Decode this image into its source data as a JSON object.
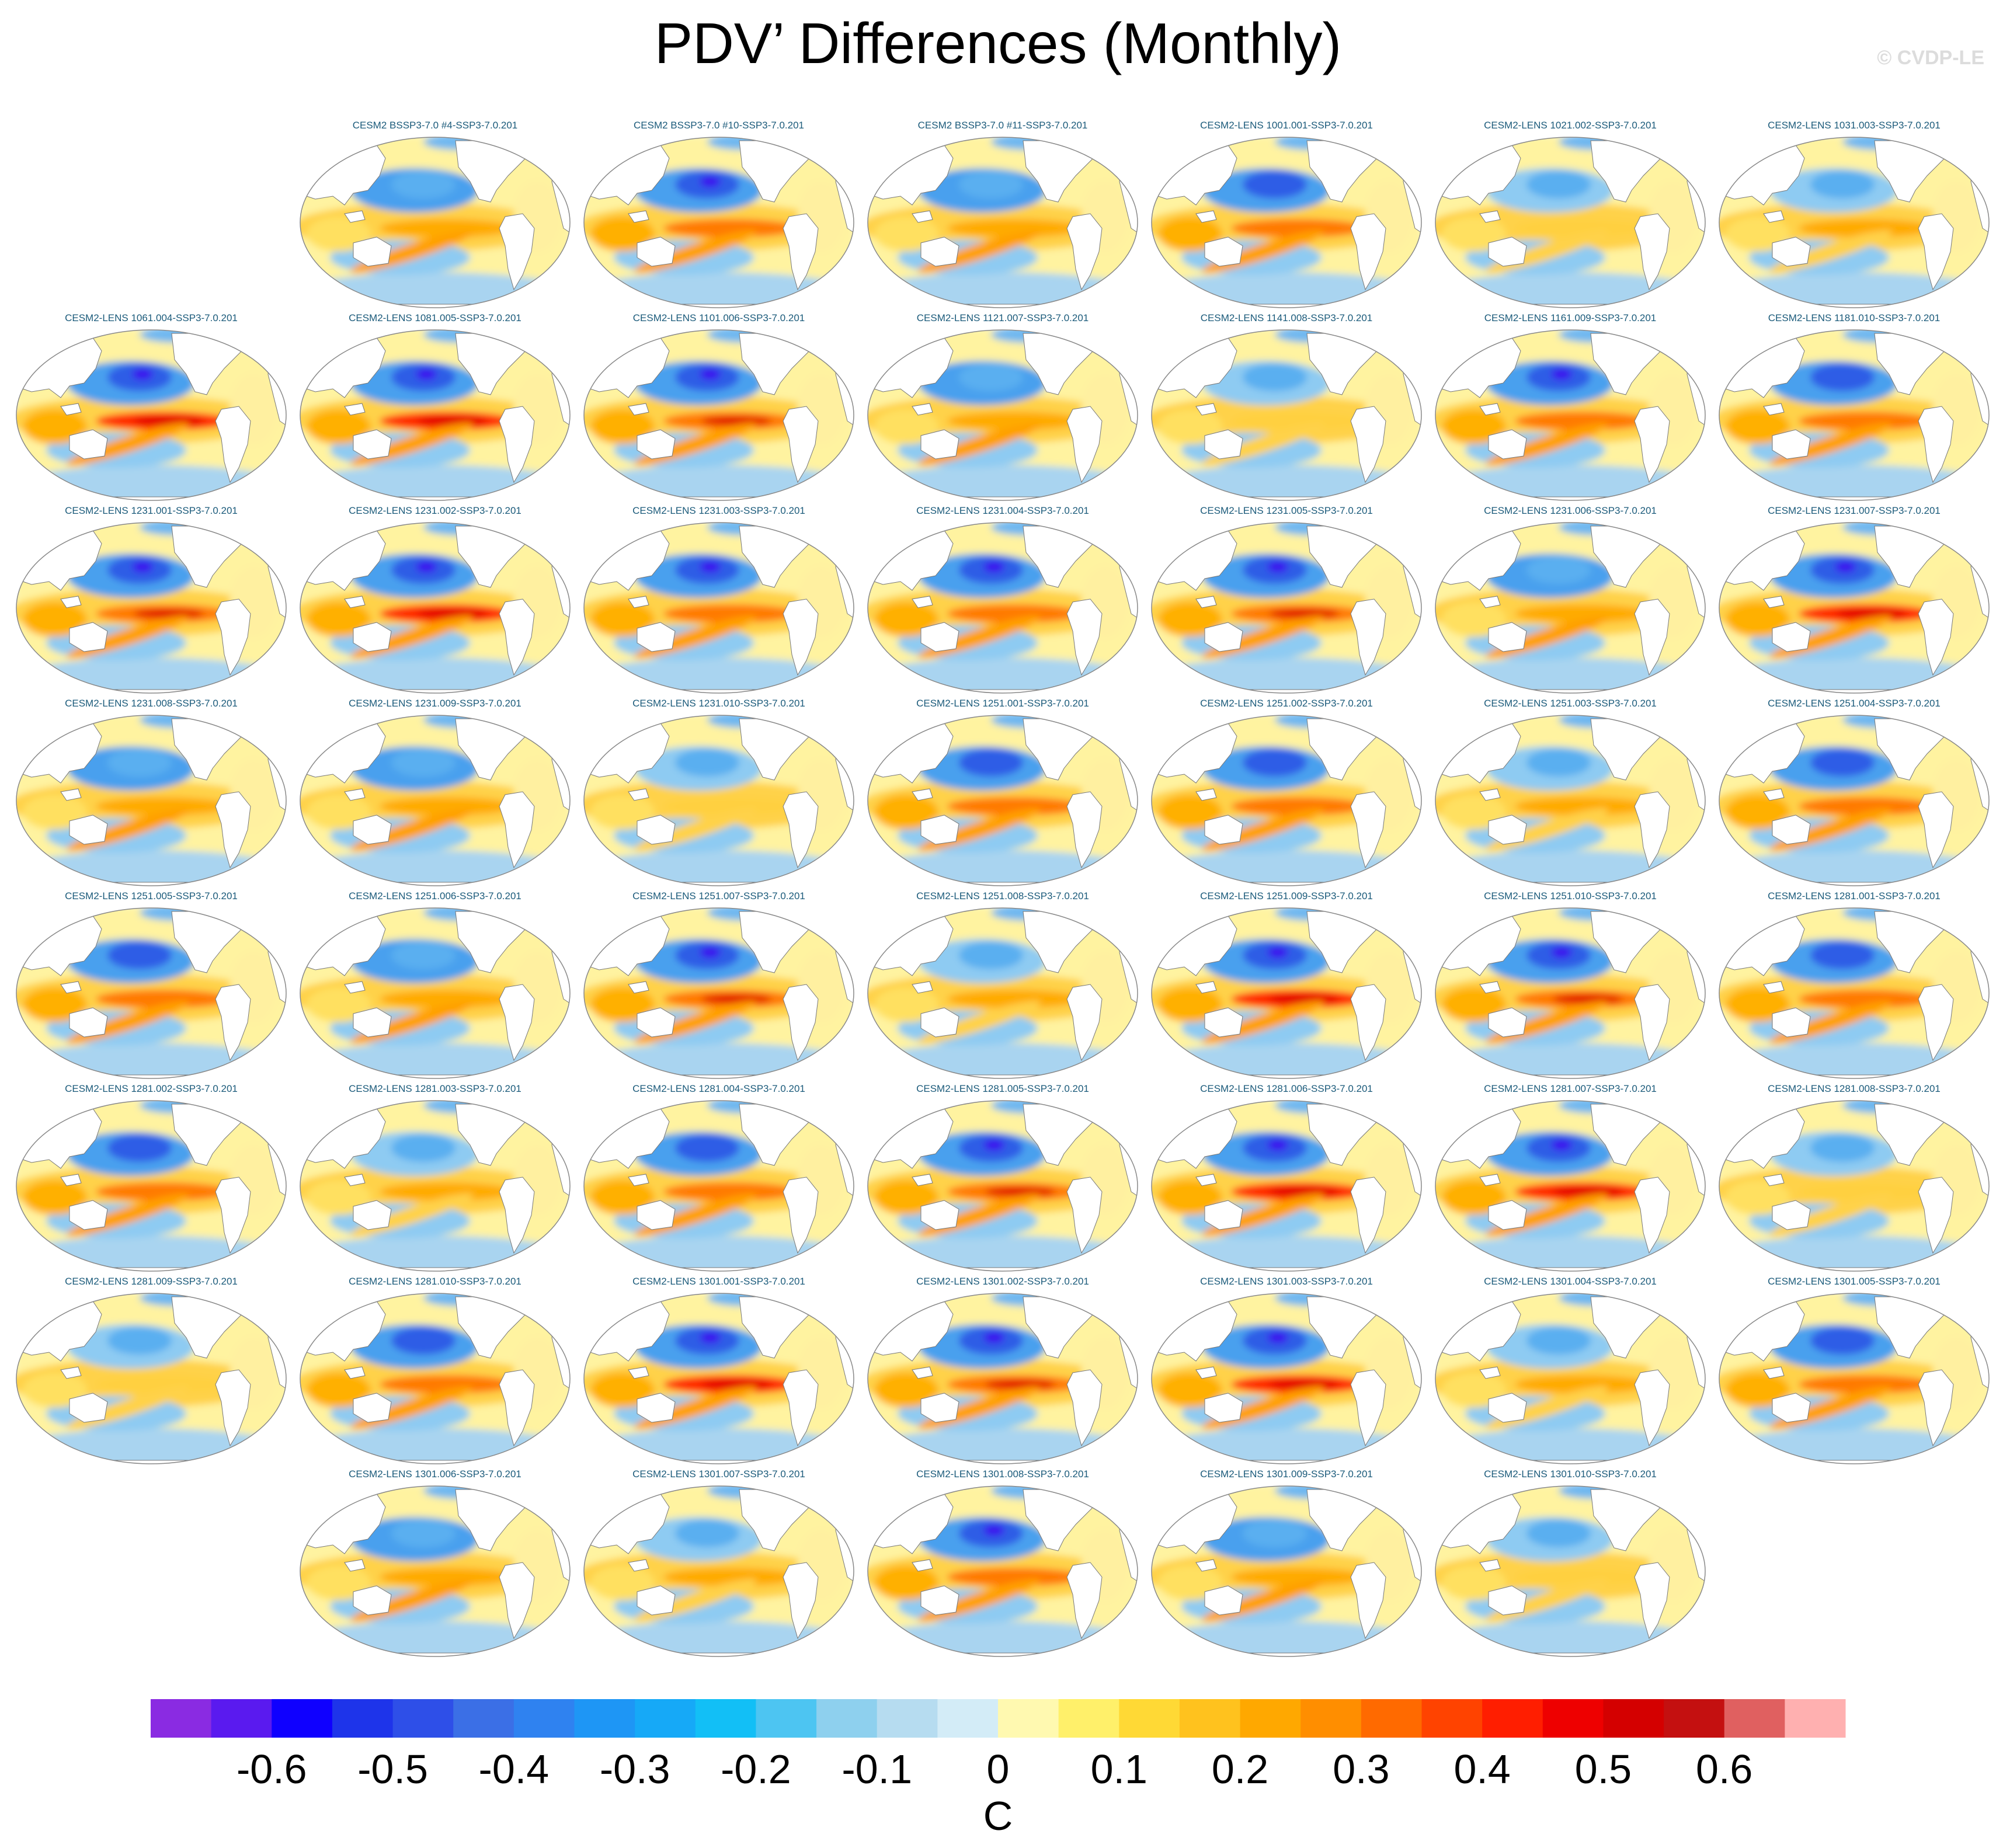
{
  "title": "PDV’ Differences (Monthly)",
  "watermark": "© CVDP-LE",
  "colorbar": {
    "units": "C",
    "tick_labels": [
      "-0.6",
      "-0.5",
      "-0.4",
      "-0.3",
      "-0.2",
      "-0.1",
      "0",
      "0.1",
      "0.2",
      "0.3",
      "0.4",
      "0.5",
      "0.6"
    ],
    "colors": [
      "#8a2be2",
      "#5a1aef",
      "#0f00ff",
      "#1e34ea",
      "#2e4fe8",
      "#3b6fe6",
      "#2f82f0",
      "#1e96f5",
      "#16a9f7",
      "#12bff6",
      "#4dc5f2",
      "#8ed0ee",
      "#b6dcf0",
      "#d3ecf7",
      "#fff9b0",
      "#fff06a",
      "#ffd935",
      "#ffc21e",
      "#ffa800",
      "#ff8e00",
      "#ff6a00",
      "#ff4300",
      "#ff1e00",
      "#ee0000",
      "#d40000",
      "#c41010",
      "#e06060",
      "#ffb0b0"
    ]
  },
  "panels": [
    {
      "row": 0,
      "col": 1,
      "label": "CESM2 BSSP3-7.0 #4-SSP3-7.0.201",
      "pattern": 0.55
    },
    {
      "row": 0,
      "col": 2,
      "label": "CESM2 BSSP3-7.0 #10-SSP3-7.0.201",
      "pattern": 0.75
    },
    {
      "row": 0,
      "col": 3,
      "label": "CESM2 BSSP3-7.0 #11-SSP3-7.0.201",
      "pattern": 0.55
    },
    {
      "row": 0,
      "col": 4,
      "label": "CESM2-LENS 1001.001-SSP3-7.0.201",
      "pattern": 0.7
    },
    {
      "row": 0,
      "col": 5,
      "label": "CESM2-LENS 1021.002-SSP3-7.0.201",
      "pattern": 0.3
    },
    {
      "row": 0,
      "col": 6,
      "label": "CESM2-LENS 1031.003-SSP3-7.0.201",
      "pattern": 0.45
    },
    {
      "row": 1,
      "col": 0,
      "label": "CESM2-LENS 1061.004-SSP3-7.0.201",
      "pattern": 0.85
    },
    {
      "row": 1,
      "col": 1,
      "label": "CESM2-LENS 1081.005-SSP3-7.0.201",
      "pattern": 0.85
    },
    {
      "row": 1,
      "col": 2,
      "label": "CESM2-LENS 1101.006-SSP3-7.0.201",
      "pattern": 0.8
    },
    {
      "row": 1,
      "col": 3,
      "label": "CESM2-LENS 1121.007-SSP3-7.0.201",
      "pattern": 0.6
    },
    {
      "row": 1,
      "col": 4,
      "label": "CESM2-LENS 1141.008-SSP3-7.0.201",
      "pattern": 0.35
    },
    {
      "row": 1,
      "col": 5,
      "label": "CESM2-LENS 1161.009-SSP3-7.0.201",
      "pattern": 0.75
    },
    {
      "row": 1,
      "col": 6,
      "label": "CESM2-LENS 1181.010-SSP3-7.0.201",
      "pattern": 0.7
    },
    {
      "row": 2,
      "col": 0,
      "label": "CESM2-LENS 1231.001-SSP3-7.0.201",
      "pattern": 0.8
    },
    {
      "row": 2,
      "col": 1,
      "label": "CESM2-LENS 1231.002-SSP3-7.0.201",
      "pattern": 0.85
    },
    {
      "row": 2,
      "col": 2,
      "label": "CESM2-LENS 1231.003-SSP3-7.0.201",
      "pattern": 0.75
    },
    {
      "row": 2,
      "col": 3,
      "label": "CESM2-LENS 1231.004-SSP3-7.0.201",
      "pattern": 0.75
    },
    {
      "row": 2,
      "col": 4,
      "label": "CESM2-LENS 1231.005-SSP3-7.0.201",
      "pattern": 0.8
    },
    {
      "row": 2,
      "col": 5,
      "label": "CESM2-LENS 1231.006-SSP3-7.0.201",
      "pattern": 0.6
    },
    {
      "row": 2,
      "col": 6,
      "label": "CESM2-LENS 1231.007-SSP3-7.0.201",
      "pattern": 0.85
    },
    {
      "row": 3,
      "col": 0,
      "label": "CESM2-LENS 1231.008-SSP3-7.0.201",
      "pattern": 0.6
    },
    {
      "row": 3,
      "col": 1,
      "label": "CESM2-LENS 1231.009-SSP3-7.0.201",
      "pattern": 0.55
    },
    {
      "row": 3,
      "col": 2,
      "label": "CESM2-LENS 1231.010-SSP3-7.0.201",
      "pattern": 0.4
    },
    {
      "row": 3,
      "col": 3,
      "label": "CESM2-LENS 1251.001-SSP3-7.0.201",
      "pattern": 0.65
    },
    {
      "row": 3,
      "col": 4,
      "label": "CESM2-LENS 1251.002-SSP3-7.0.201",
      "pattern": 0.7
    },
    {
      "row": 3,
      "col": 5,
      "label": "CESM2-LENS 1251.003-SSP3-7.0.201",
      "pattern": 0.5
    },
    {
      "row": 3,
      "col": 6,
      "label": "CESM2-LENS 1251.004-SSP3-7.0.201",
      "pattern": 0.65
    },
    {
      "row": 4,
      "col": 0,
      "label": "CESM2-LENS 1251.005-SSP3-7.0.201",
      "pattern": 0.7
    },
    {
      "row": 4,
      "col": 1,
      "label": "CESM2-LENS 1251.006-SSP3-7.0.201",
      "pattern": 0.6
    },
    {
      "row": 4,
      "col": 2,
      "label": "CESM2-LENS 1251.007-SSP3-7.0.201",
      "pattern": 0.8
    },
    {
      "row": 4,
      "col": 3,
      "label": "CESM2-LENS 1251.008-SSP3-7.0.201",
      "pattern": 0.5
    },
    {
      "row": 4,
      "col": 4,
      "label": "CESM2-LENS 1251.009-SSP3-7.0.201",
      "pattern": 0.85
    },
    {
      "row": 4,
      "col": 5,
      "label": "CESM2-LENS 1251.010-SSP3-7.0.201",
      "pattern": 0.8
    },
    {
      "row": 4,
      "col": 6,
      "label": "CESM2-LENS 1281.001-SSP3-7.0.201",
      "pattern": 0.7
    },
    {
      "row": 5,
      "col": 0,
      "label": "CESM2-LENS 1281.002-SSP3-7.0.201",
      "pattern": 0.65
    },
    {
      "row": 5,
      "col": 1,
      "label": "CESM2-LENS 1281.003-SSP3-7.0.201",
      "pattern": 0.5
    },
    {
      "row": 5,
      "col": 2,
      "label": "CESM2-LENS 1281.004-SSP3-7.0.201",
      "pattern": 0.7
    },
    {
      "row": 5,
      "col": 3,
      "label": "CESM2-LENS 1281.005-SSP3-7.0.201",
      "pattern": 0.8
    },
    {
      "row": 5,
      "col": 4,
      "label": "CESM2-LENS 1281.006-SSP3-7.0.201",
      "pattern": 0.85
    },
    {
      "row": 5,
      "col": 5,
      "label": "CESM2-LENS 1281.007-SSP3-7.0.201",
      "pattern": 0.85
    },
    {
      "row": 5,
      "col": 6,
      "label": "CESM2-LENS 1281.008-SSP3-7.0.201",
      "pattern": 0.4
    },
    {
      "row": 6,
      "col": 0,
      "label": "CESM2-LENS 1281.009-SSP3-7.0.201",
      "pattern": 0.25
    },
    {
      "row": 6,
      "col": 1,
      "label": "CESM2-LENS 1281.010-SSP3-7.0.201",
      "pattern": 0.65
    },
    {
      "row": 6,
      "col": 2,
      "label": "CESM2-LENS 1301.001-SSP3-7.0.201",
      "pattern": 0.95
    },
    {
      "row": 6,
      "col": 3,
      "label": "CESM2-LENS 1301.002-SSP3-7.0.201",
      "pattern": 0.8
    },
    {
      "row": 6,
      "col": 4,
      "label": "CESM2-LENS 1301.003-SSP3-7.0.201",
      "pattern": 0.85
    },
    {
      "row": 6,
      "col": 5,
      "label": "CESM2-LENS 1301.004-SSP3-7.0.201",
      "pattern": 0.5
    },
    {
      "row": 6,
      "col": 6,
      "label": "CESM2-LENS 1301.005-SSP3-7.0.201",
      "pattern": 0.65
    },
    {
      "row": 7,
      "col": 1,
      "label": "CESM2-LENS 1301.006-SSP3-7.0.201",
      "pattern": 0.6
    },
    {
      "row": 7,
      "col": 2,
      "label": "CESM2-LENS 1301.007-SSP3-7.0.201",
      "pattern": 0.45
    },
    {
      "row": 7,
      "col": 3,
      "label": "CESM2-LENS 1301.008-SSP3-7.0.201",
      "pattern": 0.75
    },
    {
      "row": 7,
      "col": 4,
      "label": "CESM2-LENS 1301.009-SSP3-7.0.201",
      "pattern": 0.55
    },
    {
      "row": 7,
      "col": 5,
      "label": "CESM2-LENS 1301.010-SSP3-7.0.201",
      "pattern": 0.3
    }
  ]
}
